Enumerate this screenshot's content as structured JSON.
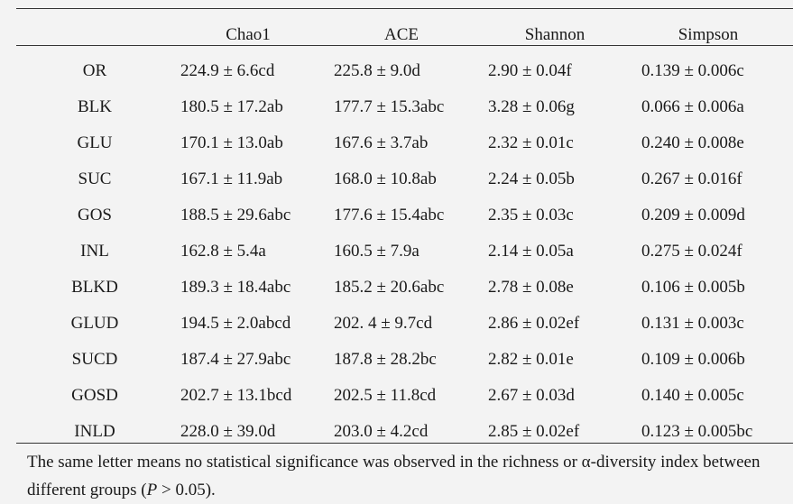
{
  "table": {
    "columns": [
      "Chao1",
      "ACE",
      "Shannon",
      "Simpson"
    ],
    "rows": [
      [
        "OR",
        "224.9 ± 6.6cd",
        "225.8 ± 9.0d",
        "2.90 ± 0.04f",
        "0.139 ± 0.006c"
      ],
      [
        "BLK",
        "180.5 ± 17.2ab",
        "177.7 ± 15.3abc",
        "3.28 ± 0.06g",
        "0.066 ± 0.006a"
      ],
      [
        "GLU",
        "170.1 ± 13.0ab",
        "167.6 ± 3.7ab",
        "2.32 ± 0.01c",
        "0.240 ± 0.008e"
      ],
      [
        "SUC",
        "167.1 ± 11.9ab",
        "168.0 ± 10.8ab",
        "2.24 ± 0.05b",
        "0.267 ± 0.016f"
      ],
      [
        "GOS",
        "188.5 ± 29.6abc",
        "177.6 ± 15.4abc",
        "2.35 ± 0.03c",
        "0.209 ± 0.009d"
      ],
      [
        "INL",
        "162.8 ± 5.4a",
        "160.5 ± 7.9a",
        "2.14 ± 0.05a",
        "0.275 ± 0.024f"
      ],
      [
        "BLKD",
        "189.3 ± 18.4abc",
        "185.2 ± 20.6abc",
        "2.78 ± 0.08e",
        "0.106 ± 0.005b"
      ],
      [
        "GLUD",
        "194.5 ± 2.0abcd",
        "202. 4 ± 9.7cd",
        "2.86 ± 0.02ef",
        "0.131 ± 0.003c"
      ],
      [
        "SUCD",
        "187.4 ± 27.9abc",
        "187.8 ± 28.2bc",
        "2.82 ± 0.01e",
        "0.109 ± 0.006b"
      ],
      [
        "GOSD",
        "202.7 ± 13.1bcd",
        "202.5 ± 11.8cd",
        "2.67 ± 0.03d",
        "0.140 ± 0.005c"
      ],
      [
        "INLD",
        "228.0 ± 39.0d",
        "203.0 ± 4.2cd",
        "2.85 ± 0.02ef",
        "0.123 ± 0.005bc"
      ]
    ]
  },
  "footnote": {
    "text": "The same letter means no statistical significance was observed in the richness or α-diversity index between different groups (",
    "symbol": "P",
    "tail": " > 0.05)."
  }
}
